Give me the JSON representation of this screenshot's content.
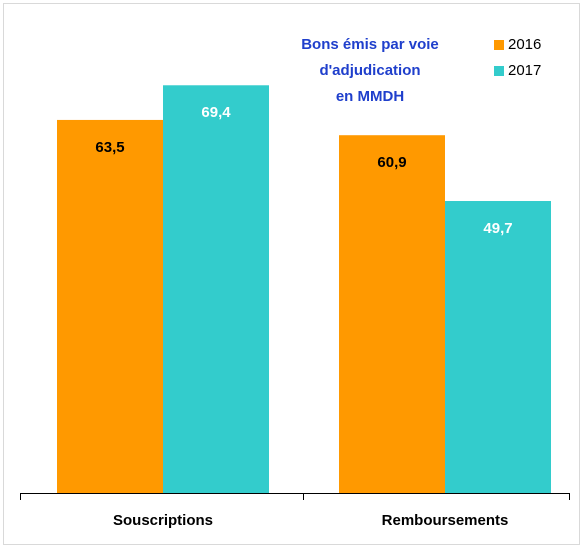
{
  "chart_data": {
    "type": "bar",
    "title": [
      "Bons émis par voie",
      "d'adjudication",
      "en MMDH"
    ],
    "title_color": "#1f3fcc",
    "categories": [
      "Souscriptions",
      "Remboursements"
    ],
    "series": [
      {
        "name": "2016",
        "color": "#ff9900",
        "label_color": "#000000",
        "values": [
          63.5,
          60.9
        ],
        "value_labels": [
          "63,5",
          "60,9"
        ]
      },
      {
        "name": "2017",
        "color": "#33cccc",
        "label_color": "#ffffff",
        "values": [
          69.4,
          49.7
        ],
        "value_labels": [
          "69,4",
          "49,7"
        ]
      }
    ],
    "ylim": [
      0,
      80
    ],
    "legend": "top-right"
  }
}
